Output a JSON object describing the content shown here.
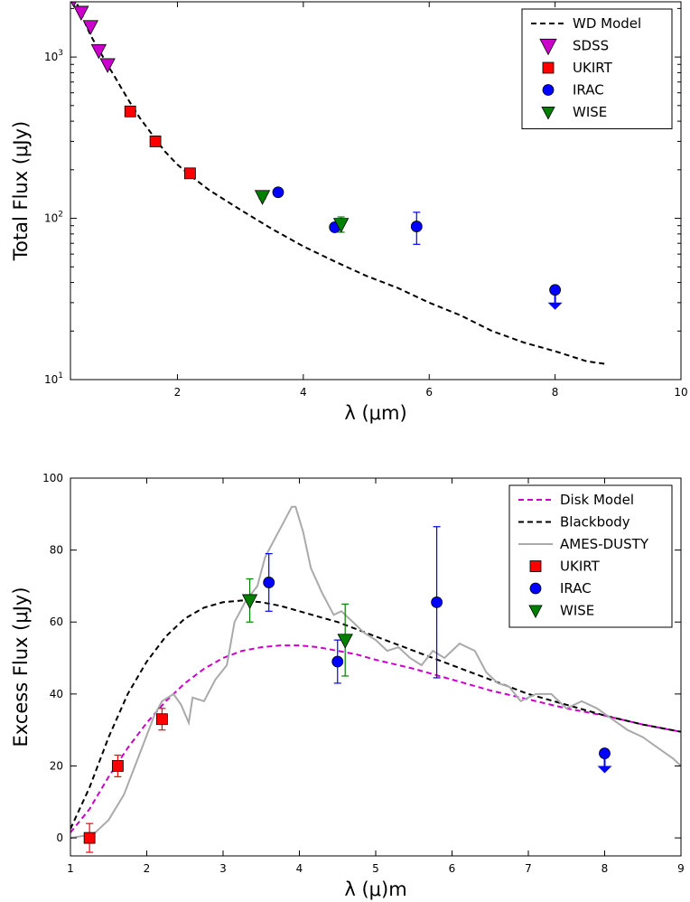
{
  "chart_data": [
    {
      "type": "scatter",
      "xlabel": "λ (μm)",
      "ylabel": "Total Flux (μJy)",
      "xlim": [
        0.3,
        10
      ],
      "ylim": [
        10,
        2200
      ],
      "yscale": "log",
      "x_ticks": [
        2,
        4,
        6,
        8,
        10
      ],
      "y_ticks": [
        {
          "value": 10,
          "base": "10",
          "exp": "1"
        },
        {
          "value": 100,
          "base": "10",
          "exp": "2"
        },
        {
          "value": 1000,
          "base": "10",
          "exp": "3"
        }
      ],
      "grid": false,
      "legend": "top-right",
      "legend_entries": [
        "WD Model",
        "SDSS",
        "UKIRT",
        "IRAC",
        "WISE"
      ],
      "model": {
        "name": "WD Model",
        "color": "#000000",
        "style": "dashed",
        "x": [
          0.35,
          0.4,
          0.45,
          0.5,
          0.55,
          0.6,
          0.65,
          0.7,
          0.8,
          0.9,
          1.0,
          1.1,
          1.25,
          1.4,
          1.6,
          1.8,
          2.0,
          2.2,
          2.5,
          3.0,
          3.5,
          4.0,
          4.5,
          5.0,
          5.5,
          6.0,
          6.5,
          7.0,
          7.5,
          8.0,
          8.5,
          8.8
        ],
        "y": [
          2400,
          2150,
          1950,
          1750,
          1570,
          1420,
          1300,
          1200,
          1030,
          880,
          760,
          650,
          520,
          420,
          330,
          260,
          215,
          185,
          150,
          113,
          86,
          67,
          54,
          44,
          37,
          30,
          25,
          20,
          17,
          15,
          13,
          12.5
        ]
      },
      "series": [
        {
          "name": "SDSS",
          "marker": "triangle-down",
          "color": "#cc00cc",
          "x": [
            0.35,
            0.47,
            0.62,
            0.75,
            0.89
          ],
          "y": [
            2300,
            1900,
            1550,
            1100,
            900
          ],
          "yerr": [
            0,
            0,
            0,
            0,
            0
          ]
        },
        {
          "name": "UKIRT",
          "marker": "square",
          "color": "#ff0000",
          "x": [
            1.25,
            1.65,
            2.2
          ],
          "y": [
            460,
            300,
            190
          ],
          "yerr": [
            0,
            0,
            0
          ]
        },
        {
          "name": "IRAC",
          "marker": "circle",
          "color": "#0000ff",
          "x": [
            3.6,
            4.5,
            5.8,
            8.0
          ],
          "y": [
            145,
            88,
            89,
            36
          ],
          "yerr": [
            4,
            4,
            20,
            0
          ],
          "upper_limit": [
            false,
            false,
            false,
            true
          ]
        },
        {
          "name": "WISE",
          "marker": "triangle-down",
          "color": "#008000",
          "x": [
            3.35,
            4.6
          ],
          "y": [
            137,
            92
          ],
          "yerr": [
            5,
            10
          ]
        }
      ]
    },
    {
      "type": "scatter",
      "xlabel": "λ (μ)m",
      "ylabel": "Excess Flux (μJy)",
      "xlim": [
        1,
        9
      ],
      "ylim": [
        -5,
        100
      ],
      "x_ticks": [
        1,
        2,
        3,
        4,
        5,
        6,
        7,
        8,
        9
      ],
      "y_ticks": [
        0,
        20,
        40,
        60,
        80,
        100
      ],
      "grid": false,
      "legend": "top-right",
      "legend_entries": [
        "Disk Model",
        "Blackbody",
        "AMES-DUSTY",
        "UKIRT",
        "IRAC",
        "WISE"
      ],
      "models": [
        {
          "name": "Disk Model",
          "color": "#cc00cc",
          "style": "dashed",
          "x": [
            1.0,
            1.25,
            1.5,
            1.75,
            2.0,
            2.25,
            2.5,
            2.75,
            3.0,
            3.25,
            3.5,
            3.75,
            4.0,
            4.25,
            4.5,
            4.75,
            5.0,
            5.5,
            6.0,
            6.5,
            7.0,
            7.5,
            8.0,
            8.5,
            9.0
          ],
          "y": [
            1.5,
            8,
            17,
            25,
            32,
            38,
            43,
            47,
            50,
            52,
            53,
            53.5,
            53.5,
            53,
            52,
            51,
            49.5,
            47,
            44,
            41,
            38.5,
            36,
            34,
            31.5,
            29.5
          ]
        },
        {
          "name": "Blackbody",
          "color": "#000000",
          "style": "dashed",
          "x": [
            1.0,
            1.25,
            1.5,
            1.75,
            2.0,
            2.25,
            2.5,
            2.75,
            3.0,
            3.25,
            3.5,
            3.75,
            4.0,
            4.25,
            4.5,
            4.75,
            5.0,
            5.5,
            6.0,
            6.5,
            7.0,
            7.5,
            8.0,
            8.5,
            9.0
          ],
          "y": [
            2.5,
            14,
            28,
            40,
            49,
            56,
            61,
            64,
            65.5,
            66,
            65.5,
            64.5,
            63,
            61.5,
            60,
            58,
            56,
            52,
            48,
            44,
            40,
            37,
            34,
            31.5,
            29.5
          ]
        },
        {
          "name": "AMES-DUSTY",
          "color": "#aaaaaa",
          "style": "solid",
          "x": [
            1.0,
            1.3,
            1.5,
            1.7,
            1.9,
            2.1,
            2.2,
            2.35,
            2.45,
            2.55,
            2.6,
            2.75,
            2.9,
            3.05,
            3.15,
            3.3,
            3.45,
            3.55,
            3.6,
            3.7,
            3.8,
            3.9,
            3.95,
            4.05,
            4.15,
            4.3,
            4.45,
            4.55,
            4.7,
            4.85,
            5.0,
            5.15,
            5.3,
            5.45,
            5.6,
            5.75,
            5.9,
            6.1,
            6.3,
            6.45,
            6.6,
            6.75,
            6.9,
            7.1,
            7.3,
            7.5,
            7.7,
            7.9,
            8.1,
            8.3,
            8.5,
            8.7,
            8.9,
            9.0
          ],
          "y": [
            0,
            1,
            5,
            12,
            23,
            34,
            38,
            40,
            37,
            32,
            39,
            38,
            44,
            48,
            60,
            66,
            70,
            78,
            80,
            84,
            88,
            92,
            92,
            85,
            75,
            68,
            62,
            63,
            60,
            57,
            55,
            52,
            53,
            50,
            48,
            52,
            50,
            54,
            52,
            46,
            43,
            42,
            38,
            40,
            40,
            36,
            38,
            36,
            33,
            30,
            28,
            25,
            22,
            20
          ]
        }
      ],
      "series": [
        {
          "name": "UKIRT",
          "marker": "square",
          "color": "#ff0000",
          "x": [
            1.25,
            1.62,
            2.2
          ],
          "y": [
            0,
            20,
            33
          ],
          "yerr": [
            4,
            3,
            3
          ]
        },
        {
          "name": "IRAC",
          "marker": "circle",
          "color": "#0000ff",
          "x": [
            3.6,
            4.5,
            5.8,
            8.0
          ],
          "y": [
            71,
            49,
            65.5,
            23.5
          ],
          "yerr": [
            8,
            6,
            21,
            0
          ],
          "upper_limit": [
            false,
            false,
            false,
            true
          ]
        },
        {
          "name": "WISE",
          "marker": "triangle-down",
          "color": "#008000",
          "x": [
            3.35,
            4.6
          ],
          "y": [
            66,
            55
          ],
          "yerr": [
            6,
            10
          ]
        }
      ]
    }
  ]
}
